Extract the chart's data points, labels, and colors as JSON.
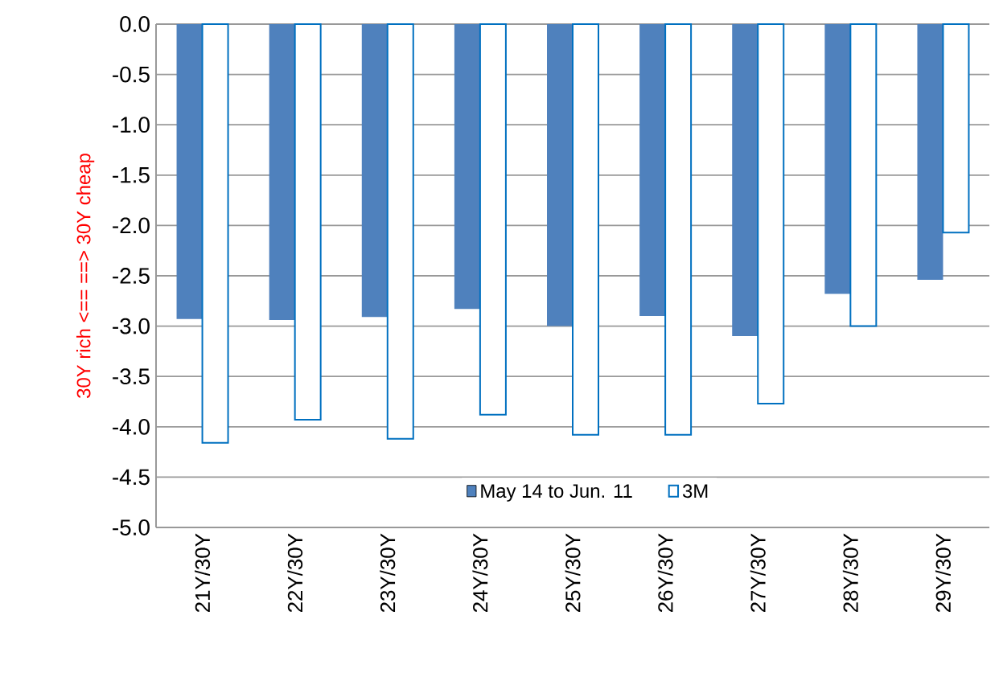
{
  "chart_data": {
    "type": "bar",
    "ylabel": "30Y  rich <== ==> 30Y cheap",
    "categories": [
      "21Y/30Y",
      "22Y/30Y",
      "23Y/30Y",
      "24Y/30Y",
      "25Y/30Y",
      "26Y/30Y",
      "27Y/30Y",
      "28Y/30Y",
      "29Y/30Y"
    ],
    "series": [
      {
        "name": "May 14 to Jun. 11",
        "color": "#4f81bd",
        "values": [
          -2.93,
          -2.94,
          -2.91,
          -2.83,
          -3.0,
          -2.9,
          -3.1,
          -2.68,
          -2.54
        ]
      },
      {
        "name": "3M",
        "color": "#0070c0",
        "values": [
          -4.16,
          -3.93,
          -4.12,
          -3.88,
          -4.08,
          -4.08,
          -3.77,
          -3.0,
          -2.07
        ]
      }
    ],
    "ylim": [
      -5,
      0
    ],
    "yticks": [
      {
        "value": 0,
        "label": "0.0"
      },
      -0.5,
      {
        "value": -1,
        "label": "-1.0"
      },
      -1.5,
      {
        "value": -2,
        "label": "-2.0"
      },
      -2.5,
      {
        "value": -3,
        "label": "-3.0"
      },
      -3.5,
      {
        "value": -4,
        "label": "-4.0"
      },
      -4.5,
      {
        "value": -5,
        "label": "-5.0"
      }
    ],
    "grid": "y",
    "legend": "bottom"
  }
}
